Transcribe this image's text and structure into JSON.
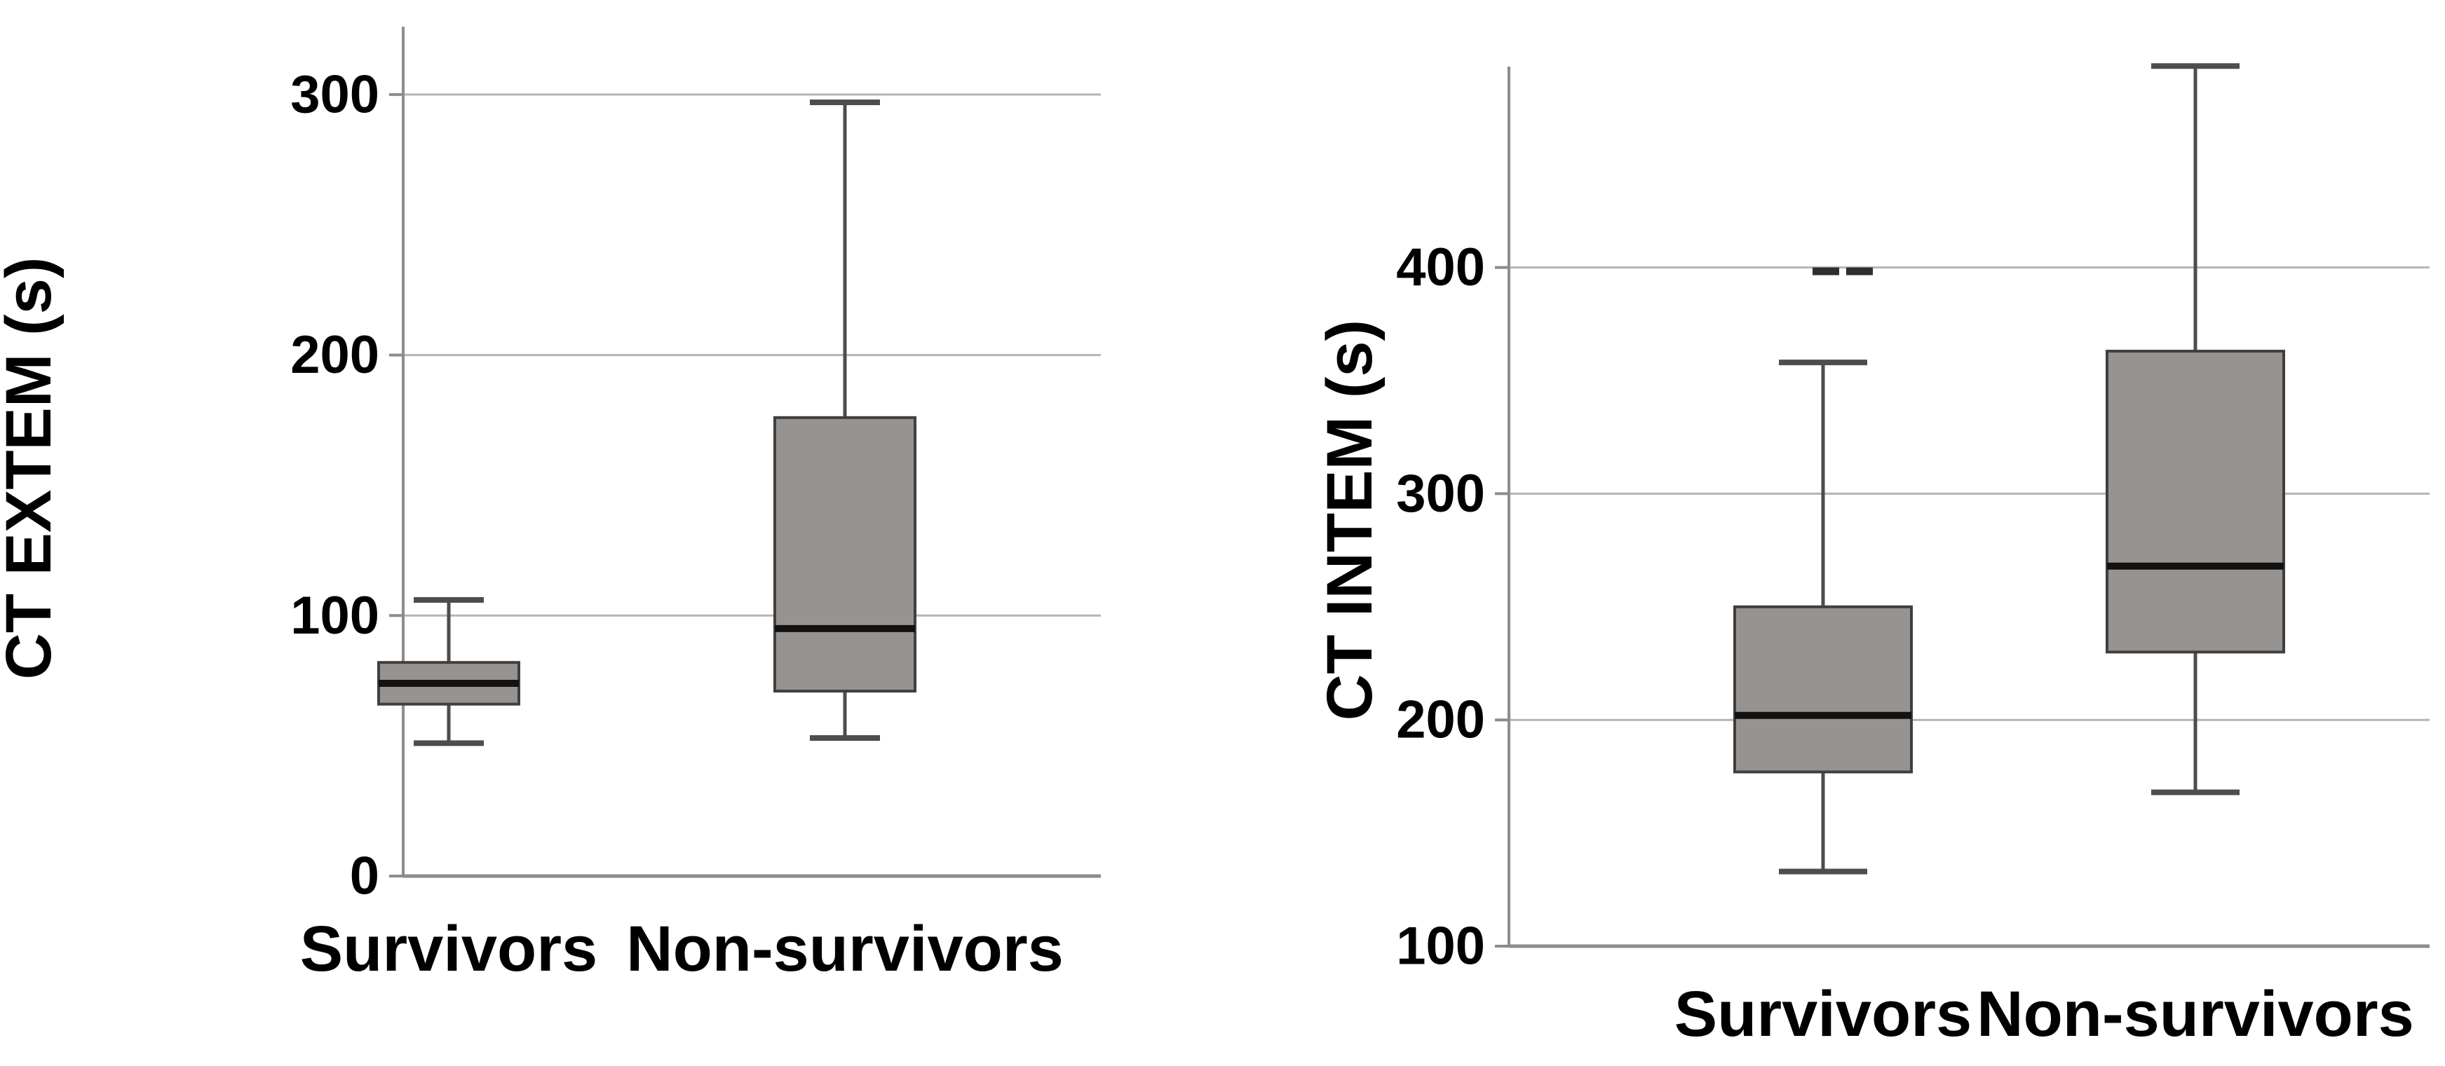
{
  "figure": {
    "background": "#ffffff",
    "description": "Two side-by-side box plots comparing survivors and non-survivors"
  },
  "colors": {
    "box_fill": "#969390",
    "box_border": "#3f3f3f",
    "median": "#121212",
    "whisker": "#4d4d4d",
    "gridline": "#b4b4b4",
    "axis": "#8c8c8c",
    "outlier": "#2e2e2e",
    "text": "#000000"
  },
  "chart_data": [
    {
      "type": "box",
      "title": "",
      "xlabel": "",
      "ylabel": "CT EXTEM (s)",
      "categories": [
        "Survivors",
        "Non-survivors"
      ],
      "yticks": [
        0,
        100,
        200,
        300
      ],
      "ylim": [
        0,
        326
      ],
      "grid": "horizontal",
      "legend": "none",
      "series": [
        {
          "category": "Survivors",
          "min": 51,
          "q1": 66,
          "median": 74,
          "q3": 82,
          "max": 106,
          "outliers": []
        },
        {
          "category": "Non-survivors",
          "min": 53,
          "q1": 71,
          "median": 95,
          "q3": 176,
          "max": 297,
          "outliers": []
        }
      ]
    },
    {
      "type": "box",
      "title": "",
      "xlabel": "",
      "ylabel": "CT INTEM (s)",
      "categories": [
        "Survivors",
        "Non-survivors"
      ],
      "yticks": [
        100,
        200,
        300,
        400
      ],
      "ylim": [
        100,
        489
      ],
      "grid": "horizontal",
      "legend": "none",
      "series": [
        {
          "category": "Survivors",
          "min": 133,
          "q1": 177,
          "median": 202,
          "q3": 250,
          "max": 358,
          "outliers": [
            400
          ]
        },
        {
          "category": "Non-survivors",
          "min": 168,
          "q1": 230,
          "median": 268,
          "q3": 363,
          "max": 489,
          "outliers": []
        }
      ]
    }
  ]
}
